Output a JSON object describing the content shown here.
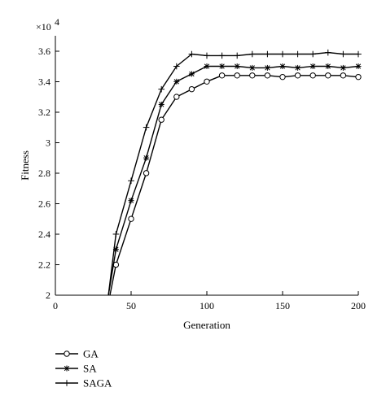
{
  "chart_data": {
    "type": "line",
    "title": "",
    "xlabel": "Generation",
    "ylabel": "Fitness",
    "y_multiplier_label": "×10",
    "y_multiplier_exponent": "4",
    "xlim": [
      0,
      200
    ],
    "ylim": [
      2,
      3.7
    ],
    "x_ticks": [
      0,
      50,
      100,
      150,
      200
    ],
    "x_tick_labels": [
      "0",
      "50",
      "100",
      "150",
      "200"
    ],
    "y_ticks": [
      2,
      2.2,
      2.4,
      2.6,
      2.8,
      3,
      3.2,
      3.4,
      3.6
    ],
    "y_tick_labels": [
      "2",
      "2.2",
      "2.4",
      "2.6",
      "2.8",
      "3",
      "3.2",
      "3.4",
      "3.6"
    ],
    "grid": false,
    "legend_position": "bottom-left",
    "series": [
      {
        "name": "GA",
        "marker": "circle",
        "x": [
          36,
          40,
          50,
          60,
          70,
          80,
          90,
          100,
          110,
          120,
          130,
          140,
          150,
          160,
          170,
          180,
          190,
          200
        ],
        "values": [
          2,
          2.2,
          2.5,
          2.8,
          3.15,
          3.3,
          3.35,
          3.4,
          3.44,
          3.44,
          3.44,
          3.44,
          3.43,
          3.44,
          3.44,
          3.44,
          3.44,
          3.43
        ]
      },
      {
        "name": "SA",
        "marker": "star",
        "x": [
          35,
          40,
          50,
          60,
          70,
          80,
          90,
          100,
          110,
          120,
          130,
          140,
          150,
          160,
          170,
          180,
          190,
          200
        ],
        "values": [
          2,
          2.3,
          2.62,
          2.9,
          3.25,
          3.4,
          3.45,
          3.5,
          3.5,
          3.5,
          3.49,
          3.49,
          3.5,
          3.49,
          3.5,
          3.5,
          3.49,
          3.5
        ]
      },
      {
        "name": "SAGA",
        "marker": "plus",
        "x": [
          35,
          40,
          50,
          60,
          70,
          80,
          90,
          100,
          110,
          120,
          130,
          140,
          150,
          160,
          170,
          180,
          190,
          200
        ],
        "values": [
          2,
          2.4,
          2.75,
          3.1,
          3.35,
          3.5,
          3.58,
          3.57,
          3.57,
          3.57,
          3.58,
          3.58,
          3.58,
          3.58,
          3.58,
          3.59,
          3.58,
          3.58
        ]
      }
    ]
  }
}
